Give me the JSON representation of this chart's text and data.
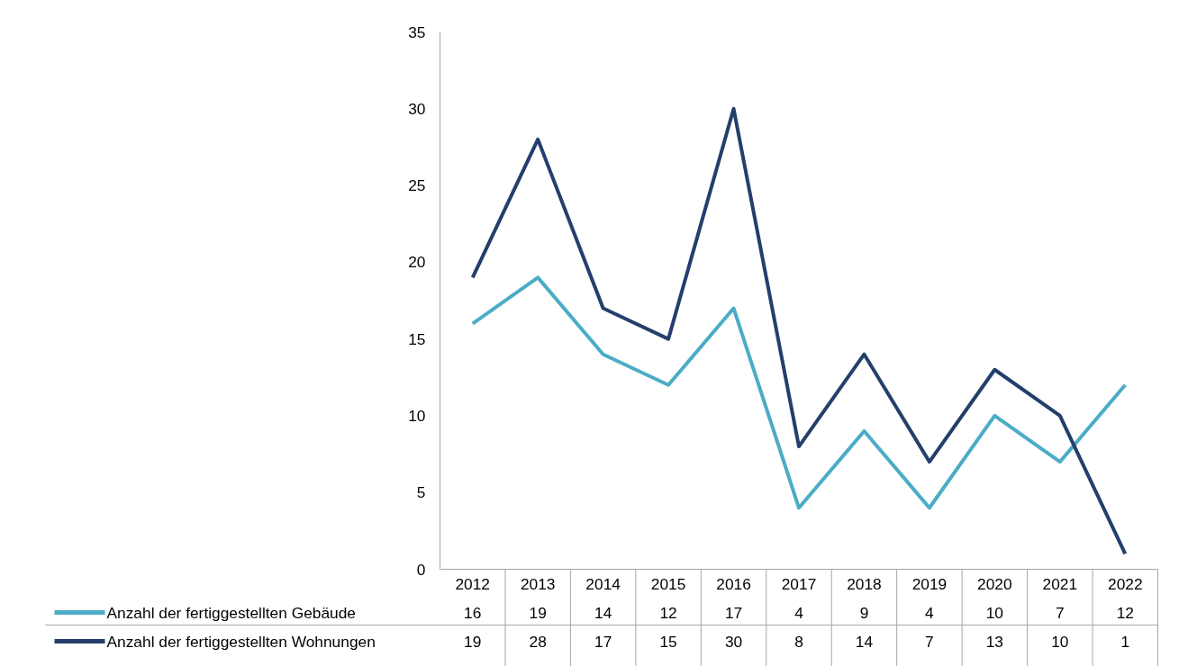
{
  "chart_data": {
    "type": "line",
    "categories": [
      "2012",
      "2013",
      "2014",
      "2015",
      "2016",
      "2017",
      "2018",
      "2019",
      "2020",
      "2021",
      "2022"
    ],
    "series": [
      {
        "name": "Anzahl der fertiggestellten Gebäude",
        "color": "#4bacc6",
        "values": [
          16,
          19,
          14,
          12,
          17,
          4,
          9,
          4,
          10,
          7,
          12
        ]
      },
      {
        "name": "Anzahl der fertiggestellten Wohnungen",
        "color": "#243f6b",
        "values": [
          19,
          28,
          17,
          15,
          30,
          8,
          14,
          7,
          13,
          10,
          1
        ]
      }
    ],
    "ylim": [
      0,
      35
    ],
    "yticks": [
      0,
      5,
      10,
      15,
      20,
      25,
      30,
      35
    ],
    "grid": false,
    "legend": "bottom left",
    "data_labels": true,
    "marker": "none",
    "line_style": "solid"
  }
}
